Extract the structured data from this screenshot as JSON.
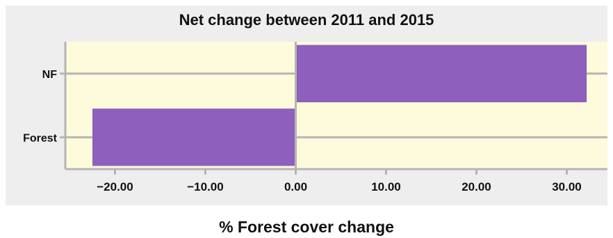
{
  "chart_data": {
    "type": "bar",
    "orientation": "horizontal",
    "title": "Net change between 2011 and 2015",
    "xlabel": "% Forest cover change",
    "ylabel": "",
    "categories": [
      "NF",
      "Forest"
    ],
    "values": [
      32.2,
      -22.5
    ],
    "xlim": [
      -25.5,
      34.5
    ],
    "xticks": [
      -20,
      -10,
      0,
      10,
      20,
      30
    ],
    "xtick_labels": [
      "−20.00",
      "−10.00",
      "0.00",
      "10.00",
      "20.00",
      "30.00"
    ],
    "grid": "y-category lines",
    "legend": "none"
  },
  "colors": {
    "bar": "#8e5fbc",
    "plot_background": "#fdfbdb",
    "panel_background": "#eeeeee",
    "gridline": "#b5b5b5",
    "text": "#111111"
  }
}
